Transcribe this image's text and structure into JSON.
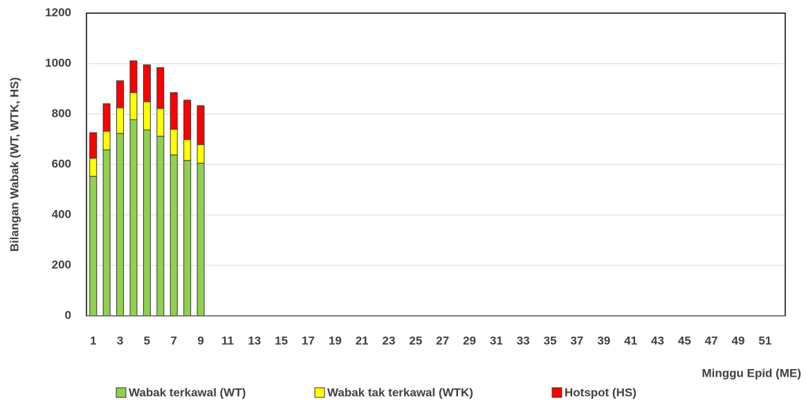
{
  "chart_data": {
    "type": "stacked_bar",
    "y_label": "Bilangan  Wabak (WT, WTK, HS)",
    "x_label": "Minggu Epid (ME)",
    "categories": [
      1,
      null,
      3,
      null,
      5,
      null,
      7,
      null,
      9,
      null,
      11,
      null,
      13,
      null,
      15,
      null,
      17,
      null,
      19,
      null,
      21,
      null,
      23,
      null,
      25,
      null,
      27,
      null,
      29,
      null,
      31,
      null,
      33,
      null,
      35,
      null,
      37,
      null,
      39,
      null,
      41,
      null,
      43,
      null,
      45,
      null,
      47,
      null,
      49,
      null,
      51,
      null
    ],
    "series": [
      {
        "name": "Wabak terkawal (WT)",
        "color": "#92d050",
        "values": [
          553,
          658,
          723,
          778,
          737,
          712,
          638,
          616,
          605,
          null,
          null,
          null,
          null,
          null,
          null,
          null,
          null,
          null,
          null,
          null,
          null,
          null,
          null,
          null,
          null,
          null,
          null,
          null,
          null,
          null,
          null,
          null,
          null,
          null,
          null,
          null,
          null,
          null,
          null,
          null,
          null,
          null,
          null,
          null,
          null,
          null,
          null,
          null,
          null,
          null,
          null,
          null
        ]
      },
      {
        "name": "Wabak tak terkawal (WTK)",
        "color": "#ffff00",
        "values": [
          72,
          74,
          102,
          107,
          112,
          110,
          102,
          83,
          74,
          null,
          null,
          null,
          null,
          null,
          null,
          null,
          null,
          null,
          null,
          null,
          null,
          null,
          null,
          null,
          null,
          null,
          null,
          null,
          null,
          null,
          null,
          null,
          null,
          null,
          null,
          null,
          null,
          null,
          null,
          null,
          null,
          null,
          null,
          null,
          null,
          null,
          null,
          null,
          null,
          null,
          null,
          null
        ]
      },
      {
        "name": "Hotspot (HS)",
        "color": "#ff0000",
        "values": [
          101,
          109,
          107,
          126,
          146,
          162,
          145,
          156,
          154,
          null,
          null,
          null,
          null,
          null,
          null,
          null,
          null,
          null,
          null,
          null,
          null,
          null,
          null,
          null,
          null,
          null,
          null,
          null,
          null,
          null,
          null,
          null,
          null,
          null,
          null,
          null,
          null,
          null,
          null,
          null,
          null,
          null,
          null,
          null,
          null,
          null,
          null,
          null,
          null,
          null,
          null,
          null
        ]
      }
    ],
    "ylim": [
      0,
      1200
    ],
    "yticks": [
      0,
      200,
      400,
      600,
      800,
      1000,
      1200
    ],
    "grid": true,
    "legend": "bottom"
  }
}
